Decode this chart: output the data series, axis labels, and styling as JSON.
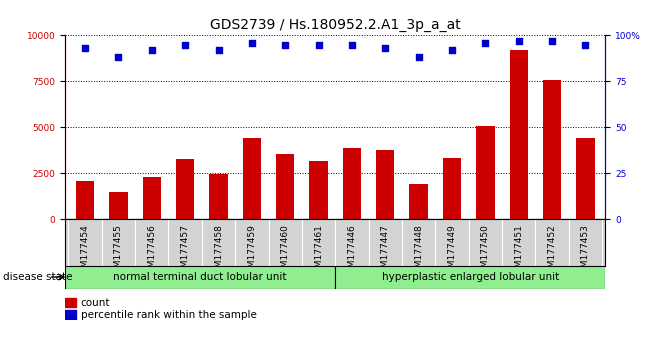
{
  "title": "GDS2739 / Hs.180952.2.A1_3p_a_at",
  "samples": [
    "GSM177454",
    "GSM177455",
    "GSM177456",
    "GSM177457",
    "GSM177458",
    "GSM177459",
    "GSM177460",
    "GSM177461",
    "GSM177446",
    "GSM177447",
    "GSM177448",
    "GSM177449",
    "GSM177450",
    "GSM177451",
    "GSM177452",
    "GSM177453"
  ],
  "counts": [
    2100,
    1500,
    2300,
    3300,
    2450,
    4450,
    3550,
    3150,
    3900,
    3750,
    1950,
    3350,
    5100,
    9200,
    7600,
    4400
  ],
  "percentiles": [
    93,
    88,
    92,
    95,
    92,
    96,
    95,
    95,
    95,
    93,
    88,
    92,
    96,
    97,
    97,
    95
  ],
  "group1_label": "normal terminal duct lobular unit",
  "group2_label": "hyperplastic enlarged lobular unit",
  "group1_count": 8,
  "group2_count": 8,
  "bar_color": "#cc0000",
  "dot_color": "#0000cc",
  "group_bg": "#90ee90",
  "tick_bg": "#d3d3d3",
  "ylim_left": [
    0,
    10000
  ],
  "ylim_right": [
    0,
    100
  ],
  "yticks_left": [
    0,
    2500,
    5000,
    7500,
    10000
  ],
  "yticks_right": [
    0,
    25,
    50,
    75,
    100
  ],
  "grid_values": [
    2500,
    5000,
    7500
  ],
  "legend_count_label": "count",
  "legend_pct_label": "percentile rank within the sample",
  "title_fontsize": 10,
  "tick_fontsize": 6.5,
  "label_fontsize": 7.5,
  "bar_width": 0.55
}
